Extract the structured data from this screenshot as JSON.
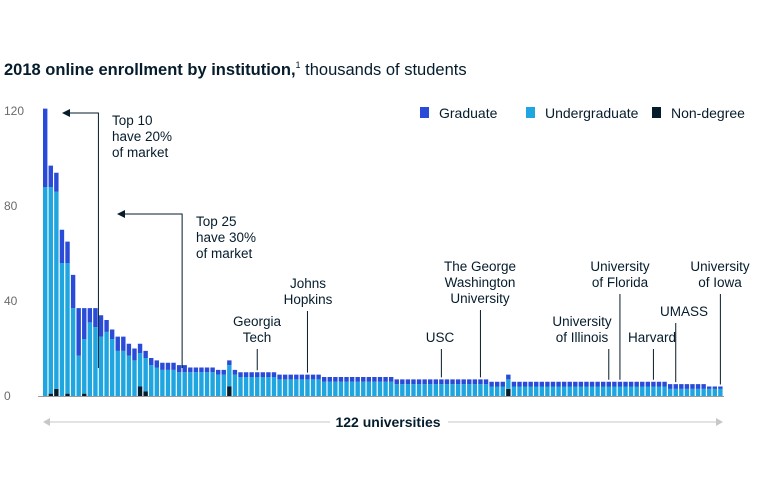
{
  "title": {
    "bold": "2018 online enrollment by institution,",
    "footnote": "1",
    "sub": " thousands of students"
  },
  "colors": {
    "graduate": "#2a4ad8",
    "undergraduate": "#1fa6e0",
    "non_degree": "#051c2c",
    "axis": "#9a9a9a",
    "text": "#051c2c"
  },
  "chart_data": {
    "type": "bar",
    "stacked": true,
    "ylim": [
      0,
      120
    ],
    "yticks": [
      0,
      40,
      80,
      120
    ],
    "n_categories": 122,
    "legend_position": "top-right",
    "series": [
      {
        "name": "Graduate",
        "values": [
          33,
          9,
          8,
          14,
          9,
          14,
          20,
          13,
          6,
          8,
          9,
          5,
          4,
          6,
          6,
          5,
          5,
          4,
          3,
          3,
          3,
          3,
          3,
          3,
          3,
          3,
          2,
          2,
          2,
          2,
          2,
          2,
          2,
          2,
          2,
          2,
          2,
          2,
          2,
          2,
          2,
          2,
          2,
          2,
          2,
          2,
          2,
          2,
          2,
          2,
          2,
          2,
          2,
          2,
          2,
          2,
          2,
          2,
          2,
          2,
          2,
          2,
          2,
          2,
          2,
          2,
          2,
          2,
          2,
          2,
          2,
          2,
          2,
          2,
          2,
          2,
          2,
          2,
          2,
          2,
          2,
          2,
          2,
          2,
          2,
          2,
          2,
          2,
          2,
          2,
          2,
          2,
          2,
          2,
          2,
          2,
          2,
          2,
          2,
          2,
          2,
          2,
          2,
          2,
          2,
          2,
          2,
          2,
          2,
          2,
          2,
          2,
          2,
          2,
          2,
          2,
          2,
          2,
          2,
          1,
          1,
          1
        ]
      },
      {
        "name": "Undergraduate",
        "values": [
          88,
          87,
          83,
          56,
          55,
          37,
          17,
          23,
          31,
          29,
          25,
          27,
          24,
          19,
          19,
          17,
          15,
          14,
          14,
          13,
          12,
          11,
          11,
          11,
          10,
          10,
          10,
          10,
          10,
          10,
          10,
          9,
          9,
          9,
          9,
          8,
          8,
          8,
          8,
          8,
          8,
          8,
          7,
          7,
          7,
          7,
          7,
          7,
          7,
          7,
          6,
          6,
          6,
          6,
          6,
          6,
          6,
          6,
          6,
          6,
          6,
          6,
          6,
          5,
          5,
          5,
          5,
          5,
          5,
          5,
          5,
          5,
          5,
          5,
          5,
          5,
          5,
          5,
          5,
          5,
          4,
          4,
          4,
          4,
          4,
          4,
          4,
          4,
          4,
          4,
          4,
          4,
          4,
          4,
          4,
          4,
          4,
          4,
          4,
          4,
          4,
          4,
          4,
          4,
          4,
          4,
          4,
          4,
          4,
          4,
          4,
          4,
          3,
          3,
          3,
          3,
          3,
          3,
          3,
          3,
          3,
          3
        ]
      },
      {
        "name": "Non-degree",
        "values": [
          0,
          1,
          3,
          0,
          1,
          0,
          0,
          1,
          0,
          0,
          0,
          0,
          0,
          0,
          0,
          0,
          0,
          4,
          2,
          0,
          0,
          0,
          0,
          0,
          0,
          0,
          0,
          0,
          0,
          0,
          0,
          0,
          0,
          4,
          0,
          0,
          0,
          0,
          0,
          0,
          0,
          0,
          0,
          0,
          0,
          0,
          0,
          0,
          0,
          0,
          0,
          0,
          0,
          0,
          0,
          0,
          0,
          0,
          0,
          0,
          0,
          0,
          0,
          0,
          0,
          0,
          0,
          0,
          0,
          0,
          0,
          0,
          0,
          0,
          0,
          0,
          0,
          0,
          0,
          0,
          0,
          0,
          0,
          3,
          0,
          0,
          0,
          0,
          0,
          0,
          0,
          0,
          0,
          0,
          0,
          0,
          0,
          0,
          0,
          0,
          0,
          0,
          0,
          0,
          0,
          0,
          0,
          0,
          0,
          0,
          0,
          0,
          0,
          0,
          0,
          0,
          0,
          0,
          0,
          0,
          0,
          0
        ]
      }
    ],
    "bracket_annotations": [
      {
        "lines": [
          "Top 10",
          "have 20%",
          "of market"
        ],
        "bar_index": 9,
        "span_bars": 10
      },
      {
        "lines": [
          "Top 25",
          "have 30%",
          "of market"
        ],
        "bar_index": 24,
        "span_bars": 25
      }
    ],
    "label_annotations": [
      {
        "lines": [
          "Georgia",
          "Tech"
        ],
        "bar_index": 38
      },
      {
        "lines": [
          "Johns",
          "Hopkins"
        ],
        "bar_index": 47
      },
      {
        "lines": [
          "USC"
        ],
        "bar_index": 71
      },
      {
        "lines": [
          "The George",
          "Washington",
          "University"
        ],
        "bar_index": 78
      },
      {
        "lines": [
          "University",
          "of Illinois"
        ],
        "bar_index": 101
      },
      {
        "lines": [
          "University",
          "of Florida"
        ],
        "bar_index": 103
      },
      {
        "lines": [
          "Harvard"
        ],
        "bar_index": 109
      },
      {
        "lines": [
          "UMASS"
        ],
        "bar_index": 113
      },
      {
        "lines": [
          "University",
          "of Iowa"
        ],
        "bar_index": 121
      }
    ],
    "span_label": "122 universities"
  }
}
